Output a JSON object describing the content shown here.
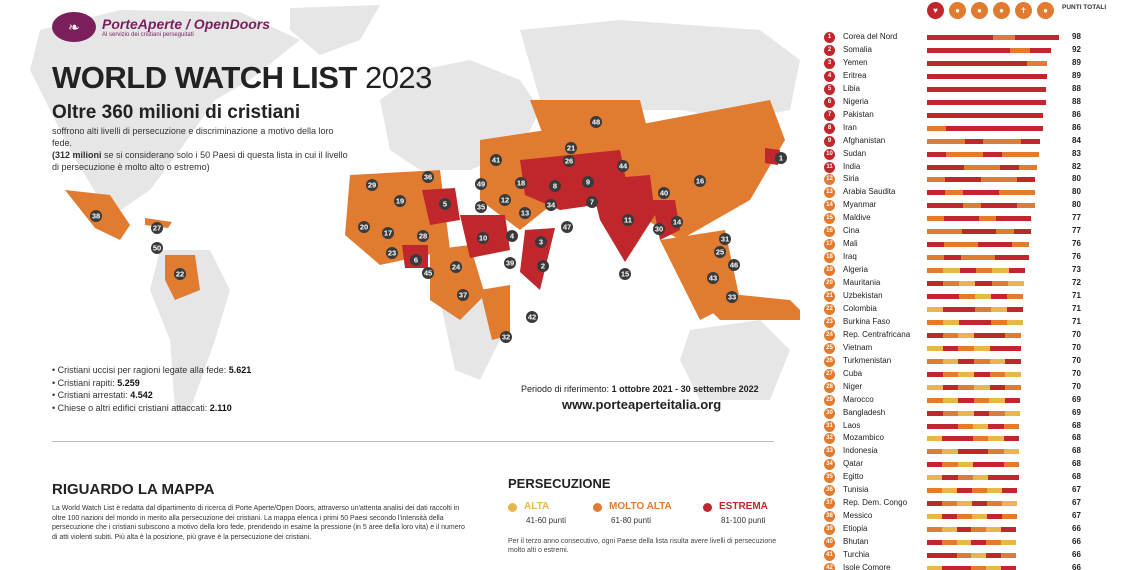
{
  "header": {
    "logo_icon": "fish-icon",
    "brand": "PorteAperte / OpenDoors",
    "brand_tagline": "Al servizio dei cristiani perseguitati",
    "title_main": "WORLD WATCH LIST",
    "title_year": "2023",
    "subtitle": "Oltre 360 milioni di cristiani",
    "description_1": "soffrono alti livelli di persecuzione e discriminazione a motivo della loro fede.",
    "description_2_bold": "(312 milioni",
    "description_2_rest": " se si considerano solo i 50 Paesi di questa lista in cui il livello di persecuzione è molto alto o estremo)"
  },
  "stats": [
    {
      "label": "Cristiani uccisi per ragioni legate alla fede:",
      "value": "5.621"
    },
    {
      "label": "Cristiani rapiti:",
      "value": "5.259"
    },
    {
      "label": "Cristiani arrestati:",
      "value": "4.542"
    },
    {
      "label": "Chiese o altri edifici cristiani attaccati:",
      "value": "2.110"
    }
  ],
  "period": {
    "label": "Periodo di riferimento:",
    "value": "1 ottobre 2021 - 30 settembre 2022"
  },
  "website": "www.porteaperteitalia.org",
  "about": {
    "title": "RIGUARDO LA MAPPA",
    "text": "La World Watch List è redatta dal dipartimento di ricerca di Porte Aperte/Open Doors, attraverso un'attenta analisi dei dati raccolti in oltre 100 nazioni del mondo in merito alla persecuzione dei cristiani. La mappa elenca i primi 50 Paesi secondo l'intensità della persecuzione che i cristiani subiscono a motivo della loro fede, prendendo in esame la pressione (in 5 aree della loro vita) e il numero di atti violenti subiti. Più alta è la posizione, più grave è la persecuzione dei cristiani."
  },
  "legend": {
    "title": "PERSECUZIONE",
    "items": [
      {
        "label": "ALTA",
        "range": "41-60 punti",
        "color": "#e8b64a"
      },
      {
        "label": "MOLTO ALTA",
        "range": "61-80 punti",
        "color": "#e07b30"
      },
      {
        "label": "ESTREMA",
        "range": "81-100 punti",
        "color": "#c0272d"
      }
    ],
    "note": "Per il terzo anno consecutivo, ogni Paese della lista risulta avere livelli di persecuzione molto alti o estremi."
  },
  "ranking": {
    "header": "PUNTI TOTALI",
    "pressure_icons": [
      "heart-icon",
      "family-icon",
      "community-icon",
      "nation-icon",
      "church-icon",
      "violence-icon"
    ],
    "countries": [
      {
        "rank": "1",
        "name": "Corea del Nord",
        "score": "98"
      },
      {
        "rank": "2",
        "name": "Somalia",
        "score": "92"
      },
      {
        "rank": "3",
        "name": "Yemen",
        "score": "89"
      },
      {
        "rank": "4",
        "name": "Eritrea",
        "score": "89"
      },
      {
        "rank": "5",
        "name": "Libia",
        "score": "88"
      },
      {
        "rank": "6",
        "name": "Nigeria",
        "score": "88"
      },
      {
        "rank": "7",
        "name": "Pakistan",
        "score": "86"
      },
      {
        "rank": "8",
        "name": "Iran",
        "score": "86"
      },
      {
        "rank": "9",
        "name": "Afghanistan",
        "score": "84"
      },
      {
        "rank": "10",
        "name": "Sudan",
        "score": "83"
      },
      {
        "rank": "11",
        "name": "India",
        "score": "82"
      },
      {
        "rank": "12",
        "name": "Siria",
        "score": "80"
      },
      {
        "rank": "13",
        "name": "Arabia Saudita",
        "score": "80"
      },
      {
        "rank": "14",
        "name": "Myanmar",
        "score": "80"
      },
      {
        "rank": "15",
        "name": "Maldive",
        "score": "77"
      },
      {
        "rank": "16",
        "name": "Cina",
        "score": "77"
      },
      {
        "rank": "17",
        "name": "Mali",
        "score": "76"
      },
      {
        "rank": "18",
        "name": "Iraq",
        "score": "76"
      },
      {
        "rank": "19",
        "name": "Algeria",
        "score": "73"
      },
      {
        "rank": "20",
        "name": "Mauritania",
        "score": "72"
      },
      {
        "rank": "21",
        "name": "Uzbekistan",
        "score": "71"
      },
      {
        "rank": "22",
        "name": "Colombia",
        "score": "71"
      },
      {
        "rank": "23",
        "name": "Burkina Faso",
        "score": "71"
      },
      {
        "rank": "24",
        "name": "Rep. Centrafricana",
        "score": "70"
      },
      {
        "rank": "25",
        "name": "Vietnam",
        "score": "70"
      },
      {
        "rank": "26",
        "name": "Turkmenistan",
        "score": "70"
      },
      {
        "rank": "27",
        "name": "Cuba",
        "score": "70"
      },
      {
        "rank": "28",
        "name": "Niger",
        "score": "70"
      },
      {
        "rank": "29",
        "name": "Marocco",
        "score": "69"
      },
      {
        "rank": "30",
        "name": "Bangladesh",
        "score": "69"
      },
      {
        "rank": "31",
        "name": "Laos",
        "score": "68"
      },
      {
        "rank": "32",
        "name": "Mozambico",
        "score": "68"
      },
      {
        "rank": "33",
        "name": "Indonesia",
        "score": "68"
      },
      {
        "rank": "34",
        "name": "Qatar",
        "score": "68"
      },
      {
        "rank": "35",
        "name": "Egitto",
        "score": "68"
      },
      {
        "rank": "36",
        "name": "Tunisia",
        "score": "67"
      },
      {
        "rank": "37",
        "name": "Rep. Dem. Congo",
        "score": "67"
      },
      {
        "rank": "38",
        "name": "Messico",
        "score": "67"
      },
      {
        "rank": "39",
        "name": "Etiopia",
        "score": "66"
      },
      {
        "rank": "40",
        "name": "Bhutan",
        "score": "66"
      },
      {
        "rank": "41",
        "name": "Turchia",
        "score": "66"
      },
      {
        "rank": "42",
        "name": "Isole Comore",
        "score": "66"
      }
    ]
  },
  "colors": {
    "extreme": "#c0272d",
    "very_high": "#e07b30",
    "high": "#e8b64a",
    "land": "#e6e6e6",
    "brand": "#7a1f5c"
  },
  "map_labels": [
    "1",
    "2",
    "3",
    "4",
    "5",
    "6",
    "7",
    "8",
    "9",
    "10",
    "11",
    "12",
    "13",
    "14",
    "15",
    "16",
    "17",
    "18",
    "19",
    "20",
    "21",
    "22",
    "23",
    "24",
    "25",
    "26",
    "27",
    "28",
    "29",
    "30",
    "31",
    "32",
    "33",
    "34",
    "35",
    "36",
    "37",
    "38",
    "39",
    "40",
    "41",
    "42",
    "43",
    "44",
    "45",
    "46",
    "47",
    "48",
    "49",
    "50"
  ]
}
